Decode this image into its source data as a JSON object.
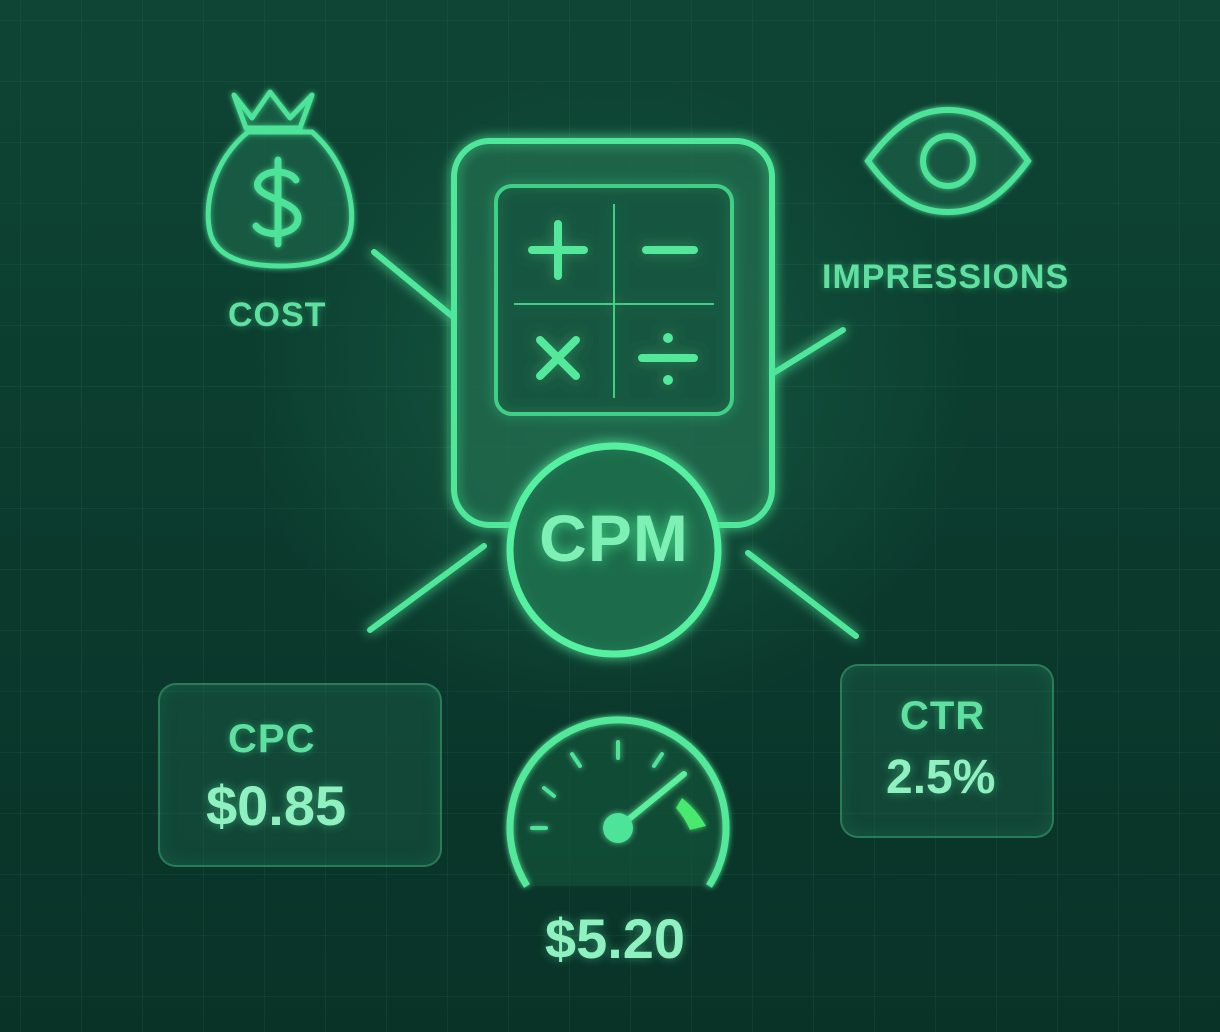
{
  "cost": {
    "label": "COST",
    "icon": "money-bag-icon"
  },
  "impressions": {
    "label": "IMPRESSIONS",
    "icon": "eye-icon"
  },
  "center": {
    "label": "CPM",
    "icon": "calculator-icon"
  },
  "cpc": {
    "title": "CPC",
    "value": "$0.85"
  },
  "ctr": {
    "title": "CTR",
    "value": "2.5%"
  },
  "gauge": {
    "value": "$5.20",
    "icon": "speedometer-icon"
  },
  "colors": {
    "background": "#0c3a2e",
    "accent": "#4fe89a",
    "text": "#5fe0a0",
    "value_text": "#8ff0c0"
  }
}
